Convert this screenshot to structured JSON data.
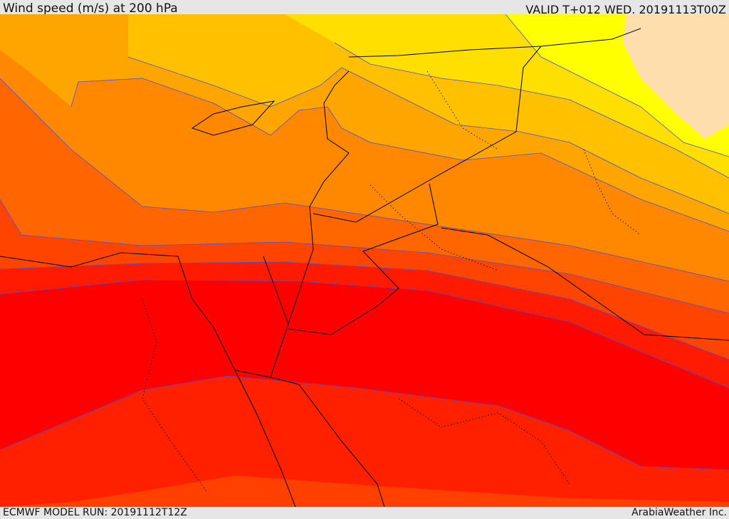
{
  "header": {
    "title": "Wind speed (m/s) at 200 hPa",
    "valid": "VALID T+012 WED. 20191113T00Z"
  },
  "footer": {
    "model_run": "ECMWF MODEL RUN: 20191112T12Z",
    "brand": "ArabiaWeather Inc."
  },
  "colors": {
    "base": "#ff4000",
    "band_red_orange": "#ff2000",
    "band_red": "#ff0000",
    "band_red2": "#ff1a00",
    "band_orange_red": "#ff4400",
    "band_dark_orange": "#ff6600",
    "band_orange": "#ff8800",
    "band_light_orange": "#ffa500",
    "band_amber": "#ffc000",
    "band_gold": "#ffdf00",
    "band_yellow": "#ffff00",
    "band_peach": "#ffdead",
    "contour": "#5050d0",
    "border": "#000000"
  }
}
